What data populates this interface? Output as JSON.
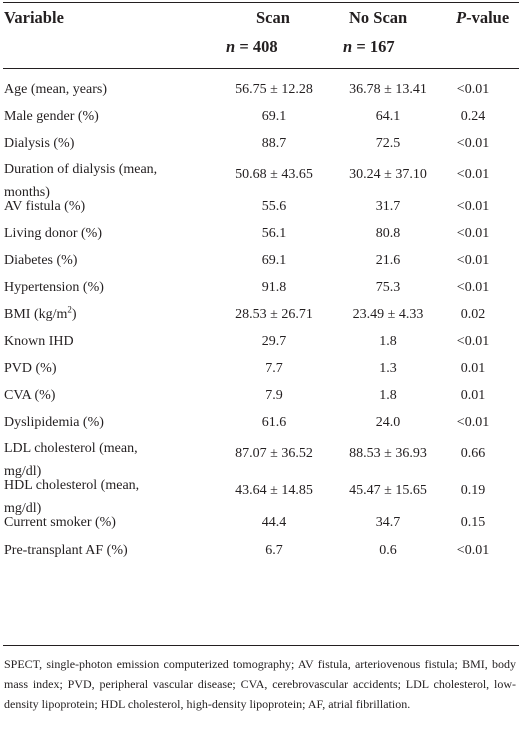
{
  "header": {
    "variable": "Variable",
    "scan": "Scan",
    "scan_n_label": "n",
    "scan_n_value": "= 408",
    "noscan": "No Scan",
    "noscan_n_label": "n",
    "noscan_n_value": "= 167",
    "pvalue_p": "P",
    "pvalue_rest": "-value"
  },
  "rows": [
    {
      "variable": "Age (mean, years)",
      "scan": "56.75 ± 12.28",
      "noscan": "36.78 ± 13.41",
      "p": "<0.01"
    },
    {
      "variable": "Male gender (%)",
      "scan": "69.1",
      "noscan": "64.1",
      "p": "0.24"
    },
    {
      "variable": "Dialysis (%)",
      "scan": "88.7",
      "noscan": "72.5",
      "p": "<0.01"
    },
    {
      "variable": "Duration of dialysis (mean,",
      "variable2": "months)",
      "scan": "50.68 ± 43.65",
      "noscan": "30.24 ± 37.10",
      "p": "<0.01"
    },
    {
      "variable": "AV fistula (%)",
      "scan": "55.6",
      "noscan": "31.7",
      "p": "<0.01"
    },
    {
      "variable": "Living donor (%)",
      "scan": "56.1",
      "noscan": "80.8",
      "p": "<0.01"
    },
    {
      "variable": "Diabetes (%)",
      "scan": "69.1",
      "noscan": "21.6",
      "p": "<0.01"
    },
    {
      "variable": "Hypertension (%)",
      "scan": "91.8",
      "noscan": "75.3",
      "p": "<0.01"
    },
    {
      "variable": "BMI (kg/m",
      "variable_sup": "2",
      "variable_tail": ")",
      "scan": "28.53 ± 26.71",
      "noscan": "23.49 ± 4.33",
      "p": "0.02"
    },
    {
      "variable": "Known IHD",
      "scan": "29.7",
      "noscan": "1.8",
      "p": "<0.01"
    },
    {
      "variable": "PVD (%)",
      "scan": "7.7",
      "noscan": "1.3",
      "p": "0.01"
    },
    {
      "variable": "CVA (%)",
      "scan": "7.9",
      "noscan": "1.8",
      "p": "0.01"
    },
    {
      "variable": "Dyslipidemia (%)",
      "scan": "61.6",
      "noscan": "24.0",
      "p": "<0.01"
    },
    {
      "variable": "LDL cholesterol (mean,",
      "variable2": "mg/dl)",
      "scan": "87.07 ± 36.52",
      "noscan": "88.53 ± 36.93",
      "p": "0.66"
    },
    {
      "variable": "HDL cholesterol (mean,",
      "variable2": "mg/dl)",
      "scan": "43.64 ± 14.85",
      "noscan": "45.47 ± 15.65",
      "p": "0.19"
    },
    {
      "variable": "Current smoker (%)",
      "scan": "44.4",
      "noscan": "34.7",
      "p": "0.15"
    },
    {
      "variable": "Pre-transplant AF (%)",
      "scan": "6.7",
      "noscan": "0.6",
      "p": "<0.01"
    }
  ],
  "footnote": "SPECT, single-photon emission computerized tomography; AV fistula, arteriovenous fistula; BMI, body mass index; PVD, peripheral vascular disease; CVA, cerebrovascular accidents; LDL cholesterol, low-density lipoprotein; HDL cholesterol, high-density lipoprotein; AF, atrial fibrillation."
}
